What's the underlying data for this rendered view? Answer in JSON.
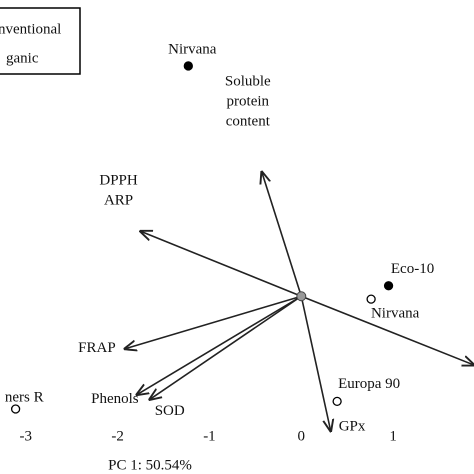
{
  "chart_data": {
    "type": "biplot",
    "x_label": "PC 1: 50.54%",
    "xlim": [
      -3.28,
      1.88
    ],
    "ylim": [
      -1.86,
      3.1
    ],
    "xticks": [
      -3,
      -2,
      -1,
      0,
      1
    ],
    "series": [
      {
        "name": "nventional",
        "color": "#000000",
        "filled": true,
        "labels": [
          "Nirvana",
          "Eco-10"
        ],
        "x": [
          -1.23,
          0.95
        ],
        "values": [
          2.41,
          0.11
        ]
      },
      {
        "name": "ganic",
        "color": "#000000",
        "filled": false,
        "labels": [
          "Nirvana",
          "Europa 90",
          "ners R"
        ],
        "x": [
          0.76,
          0.39,
          -3.11
        ],
        "values": [
          -0.03,
          -1.1,
          -1.18
        ]
      }
    ],
    "vectors": [
      {
        "lines": [
          "Soluble",
          "protein",
          "content"
        ],
        "x": -0.43,
        "y": 1.3
      },
      {
        "lines": [
          "DPPH",
          "ARP"
        ],
        "x": -1.75,
        "y": 0.68
      },
      {
        "lines": [
          "FRAP"
        ],
        "x": -1.92,
        "y": -0.55
      },
      {
        "lines": [
          "Phenols"
        ],
        "x": -1.79,
        "y": -1.03
      },
      {
        "lines": [
          "SOD"
        ],
        "x": -1.65,
        "y": -1.08
      },
      {
        "lines": [
          "GPx"
        ],
        "x": 0.32,
        "y": -1.41
      },
      {
        "x": 1.88,
        "y": -0.72
      }
    ],
    "vector_color": "#222222"
  }
}
